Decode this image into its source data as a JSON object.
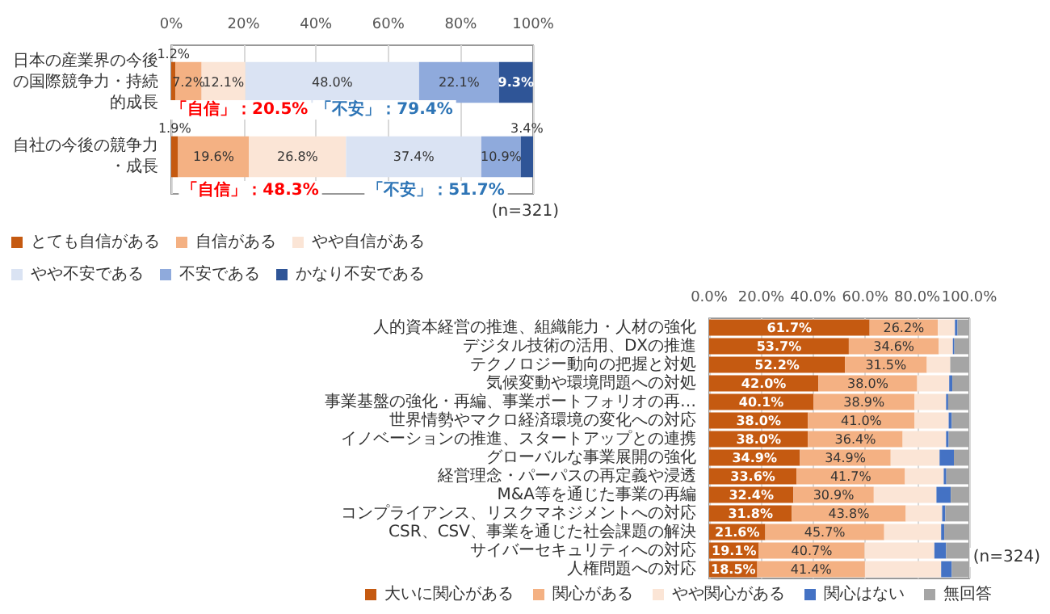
{
  "chart_data": [
    {
      "type": "bar",
      "orientation": "horizontal",
      "stacked": true,
      "categories": [
        "日本の産業界の今後の国際競争力・持続的成長",
        "自社の今後の競争力・成長"
      ],
      "series": [
        {
          "name": "とても自信がある",
          "color": "#c55a11",
          "values": [
            1.2,
            1.9
          ],
          "value_labels": [
            "1.2%",
            "1.9%"
          ]
        },
        {
          "name": "自信がある",
          "color": "#f4b183",
          "values": [
            7.2,
            19.6
          ],
          "value_labels": [
            "7.2%",
            "19.6%"
          ]
        },
        {
          "name": "やや自信がある",
          "color": "#fbe5d6",
          "values": [
            12.1,
            26.8
          ],
          "value_labels": [
            "12.1%",
            "26.8%"
          ]
        },
        {
          "name": "やや不安である",
          "color": "#dae3f3",
          "values": [
            48.0,
            37.4
          ],
          "value_labels": [
            "48.0%",
            "37.4%"
          ]
        },
        {
          "name": "不安である",
          "color": "#8faadc",
          "values": [
            22.1,
            10.9
          ],
          "value_labels": [
            "22.1%",
            "10.9%"
          ]
        },
        {
          "name": "かなり不安である",
          "color": "#2f5597",
          "values": [
            9.3,
            3.4
          ],
          "value_labels": [
            "9.3%",
            "3.4%"
          ]
        }
      ],
      "xlim": [
        0,
        100
      ],
      "xticks": [
        {
          "value": 0,
          "label": "0%"
        },
        {
          "value": 20,
          "label": "20%"
        },
        {
          "value": 40,
          "label": "40%"
        },
        {
          "value": 60,
          "label": "60%"
        },
        {
          "value": 80,
          "label": "80%"
        },
        {
          "value": 100,
          "label": "100%"
        }
      ],
      "grid": "x",
      "legend": "bottom",
      "annotations": [
        "「自信」：20.5%",
        "「不安」：79.4%",
        "「自信」：48.3%",
        "「不安」：51.7%",
        "(n=321)"
      ]
    },
    {
      "type": "bar",
      "orientation": "horizontal",
      "stacked": true,
      "categories": [
        "人的資本経営の推進、組織能力・人材の強化",
        "デジタル技術の活用、DXの推進",
        "テクノロジー動向の把握と対処",
        "気候変動や環境問題への対処",
        "事業基盤の強化・再編、事業ポートフォリオの再…",
        "世界情勢やマクロ経済環境の変化への対応",
        "イノベーションの推進、スタートアップとの連携",
        "グローバルな事業展開の強化",
        "経営理念・パーパスの再定義や浸透",
        "M&A等を通じた事業の再編",
        "コンプライアンス、リスクマネジメントへの対応",
        "CSR、CSV、事業を通じた社会課題の解決",
        "サイバーセキュリティへの対応",
        "人権問題への対応"
      ],
      "series": [
        {
          "name": "大いに関心がある",
          "color": "#c55a11",
          "values": [
            61.7,
            53.7,
            52.2,
            42.0,
            40.1,
            38.0,
            38.0,
            34.9,
            33.6,
            32.4,
            31.8,
            21.6,
            19.1,
            18.5
          ],
          "value_labels": [
            "61.7%",
            "53.7%",
            "52.2%",
            "42.0%",
            "40.1%",
            "38.0%",
            "38.0%",
            "34.9%",
            "33.6%",
            "32.4%",
            "31.8%",
            "21.6%",
            "19.1%",
            "18.5%"
          ]
        },
        {
          "name": "関心がある",
          "color": "#f4b183",
          "values": [
            26.2,
            34.6,
            31.5,
            38.0,
            38.9,
            41.0,
            36.4,
            34.9,
            41.7,
            30.9,
            43.8,
            45.7,
            40.7,
            41.4
          ],
          "value_labels": [
            "26.2%",
            "34.6%",
            "31.5%",
            "38.0%",
            "38.9%",
            "41.0%",
            "36.4%",
            "34.9%",
            "41.7%",
            "30.9%",
            "43.8%",
            "45.7%",
            "40.7%",
            "41.4%"
          ]
        },
        {
          "name": "やや関心がある",
          "color": "#fbe5d6",
          "values": [
            6.6,
            5.4,
            9.0,
            12.3,
            12.1,
            13.1,
            16.7,
            18.8,
            14.9,
            24.1,
            14.0,
            21.9,
            26.8,
            29.3
          ]
        },
        {
          "name": "関心はない",
          "color": "#4472c4",
          "values": [
            1.0,
            0.6,
            null,
            1.2,
            0.8,
            1.2,
            1.0,
            5.5,
            1.0,
            5.5,
            1.2,
            1.2,
            4.5,
            4.1
          ]
        },
        {
          "name": "無回答",
          "color": "#a5a5a5",
          "values": [
            4.5,
            5.7,
            7.3,
            6.5,
            8.1,
            6.7,
            7.9,
            5.9,
            8.8,
            7.1,
            9.2,
            9.6,
            8.9,
            6.7
          ]
        }
      ],
      "xlim": [
        0,
        100
      ],
      "xticks": [
        {
          "value": 0,
          "label": "0.0%"
        },
        {
          "value": 20,
          "label": "20.0%"
        },
        {
          "value": 40,
          "label": "40.0%"
        },
        {
          "value": 60,
          "label": "60.0%"
        },
        {
          "value": 80,
          "label": "80.0%"
        },
        {
          "value": 100,
          "label": "100.0%"
        }
      ],
      "grid": "x",
      "legend": "bottom",
      "annotations": [
        "(n=324)"
      ]
    }
  ]
}
